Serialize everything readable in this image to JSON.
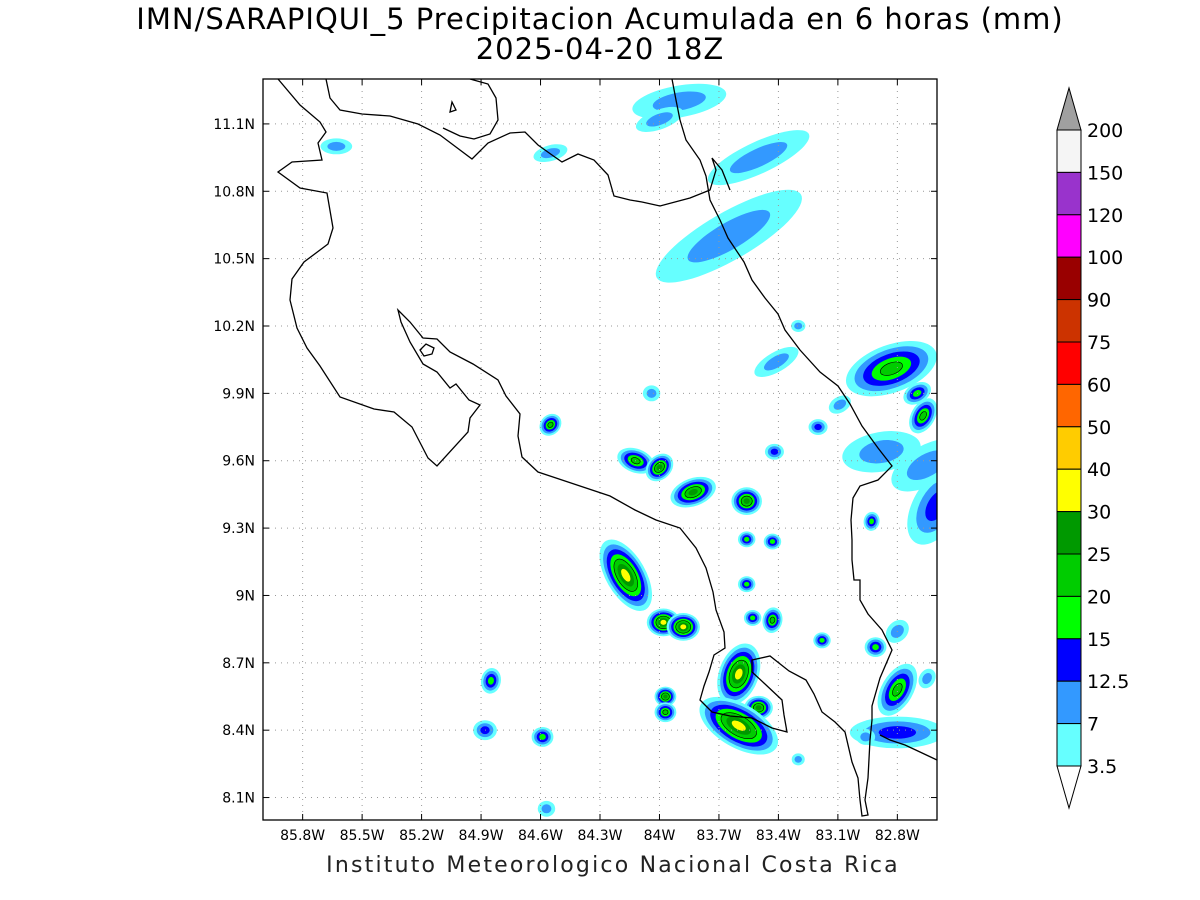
{
  "title": {
    "line1": "IMN/SARAPIQUI_5 Precipitacion Acumulada en 6 horas (mm)",
    "line2": "2025-04-20 18Z"
  },
  "footer": "Instituto Meteorologico Nacional Costa Rica",
  "map": {
    "lon_ticks": [
      "85.8W",
      "85.5W",
      "85.2W",
      "84.9W",
      "84.6W",
      "84.3W",
      "84W",
      "83.7W",
      "83.4W",
      "83.1W",
      "82.8W"
    ],
    "lat_ticks": [
      "11.1N",
      "10.8N",
      "10.5N",
      "10.2N",
      "9.9N",
      "9.6N",
      "9.3N",
      "9N",
      "8.7N",
      "8.4N",
      "8.1N"
    ],
    "lon_range": [
      -86.0,
      -82.6
    ],
    "lat_range": [
      8.0,
      11.3
    ],
    "grid": "dotted"
  },
  "colorbar": {
    "labels": [
      "200",
      "150",
      "120",
      "100",
      "90",
      "75",
      "60",
      "50",
      "40",
      "30",
      "25",
      "20",
      "15",
      "12.5",
      "7",
      "3.5"
    ],
    "colors": [
      "#a0a0a0",
      "#f5f5f5",
      "#9933cc",
      "#ff00ff",
      "#990000",
      "#cc3300",
      "#ff0000",
      "#ff6600",
      "#ffcc00",
      "#ffff00",
      "#009900",
      "#00cc00",
      "#00ff00",
      "#0000ff",
      "#3399ff",
      "#66ffff",
      "#ffffff"
    ]
  },
  "colors": {
    "c3_5": "#66ffff",
    "c7": "#3399ff",
    "c12_5": "#0000ff",
    "c15": "#00ff00",
    "c20": "#00cc00",
    "c25": "#009900",
    "c30": "#ffff00"
  },
  "rain_cells": [
    {
      "lon": -83.9,
      "lat": 11.2,
      "level": 1,
      "size": 0.08,
      "elong": 3.0,
      "angle": -10
    },
    {
      "lon": -84.0,
      "lat": 11.12,
      "level": 1,
      "size": 0.05,
      "elong": 2.5,
      "angle": -20
    },
    {
      "lon": -83.5,
      "lat": 10.95,
      "level": 1,
      "size": 0.08,
      "elong": 3.5,
      "angle": -25
    },
    {
      "lon": -83.65,
      "lat": 10.6,
      "level": 1,
      "size": 0.12,
      "elong": 3.5,
      "angle": -30
    },
    {
      "lon": -84.55,
      "lat": 10.97,
      "level": 1,
      "size": 0.04,
      "elong": 2.2,
      "angle": -15
    },
    {
      "lon": -85.63,
      "lat": 11.0,
      "level": 1,
      "size": 0.04,
      "elong": 2.0,
      "angle": 0
    },
    {
      "lon": -84.55,
      "lat": 9.76,
      "level": 4,
      "size": 0.05,
      "elong": 1.2,
      "angle": -45
    },
    {
      "lon": -84.12,
      "lat": 9.6,
      "level": 4,
      "size": 0.06,
      "elong": 1.6,
      "angle": 20
    },
    {
      "lon": -84.0,
      "lat": 9.57,
      "level": 5,
      "size": 0.06,
      "elong": 1.3,
      "angle": -45
    },
    {
      "lon": -83.83,
      "lat": 9.46,
      "level": 5,
      "size": 0.07,
      "elong": 1.7,
      "angle": -20
    },
    {
      "lon": -83.56,
      "lat": 9.42,
      "level": 5,
      "size": 0.07,
      "elong": 1.1,
      "angle": 0
    },
    {
      "lon": -84.17,
      "lat": 9.09,
      "level": 6,
      "size": 0.1,
      "elong": 2.0,
      "angle": 60
    },
    {
      "lon": -83.98,
      "lat": 8.88,
      "level": 6,
      "size": 0.07,
      "elong": 1.2,
      "angle": 0
    },
    {
      "lon": -83.88,
      "lat": 8.86,
      "level": 6,
      "size": 0.07,
      "elong": 1.2,
      "angle": 0
    },
    {
      "lon": -83.6,
      "lat": 8.65,
      "level": 6,
      "size": 0.1,
      "elong": 1.6,
      "angle": -70
    },
    {
      "lon": -83.5,
      "lat": 8.5,
      "level": 5,
      "size": 0.06,
      "elong": 1.2,
      "angle": 0
    },
    {
      "lon": -83.6,
      "lat": 8.42,
      "level": 6,
      "size": 0.11,
      "elong": 2.0,
      "angle": 30
    },
    {
      "lon": -83.97,
      "lat": 8.55,
      "level": 5,
      "size": 0.05,
      "elong": 1.1,
      "angle": 0
    },
    {
      "lon": -83.97,
      "lat": 8.48,
      "level": 4,
      "size": 0.05,
      "elong": 1.1,
      "angle": 0
    },
    {
      "lon": -83.43,
      "lat": 8.89,
      "level": 4,
      "size": 0.05,
      "elong": 1.3,
      "angle": -80
    },
    {
      "lon": -82.83,
      "lat": 10.01,
      "level": 4,
      "size": 0.12,
      "elong": 2.0,
      "angle": -20
    },
    {
      "lon": -82.67,
      "lat": 9.8,
      "level": 4,
      "size": 0.06,
      "elong": 1.6,
      "angle": -60
    },
    {
      "lon": -82.7,
      "lat": 9.9,
      "level": 3,
      "size": 0.05,
      "elong": 1.5,
      "angle": -30
    },
    {
      "lon": -82.8,
      "lat": 8.58,
      "level": 4,
      "size": 0.08,
      "elong": 1.8,
      "angle": -60
    },
    {
      "lon": -82.91,
      "lat": 8.77,
      "level": 3,
      "size": 0.05,
      "elong": 1.1,
      "angle": 0
    },
    {
      "lon": -83.18,
      "lat": 8.8,
      "level": 3,
      "size": 0.04,
      "elong": 1.1,
      "angle": 0
    },
    {
      "lon": -82.6,
      "lat": 9.4,
      "level": 2,
      "size": 0.12,
      "elong": 1.8,
      "angle": -60
    },
    {
      "lon": -82.65,
      "lat": 9.58,
      "level": 1,
      "size": 0.1,
      "elong": 2.0,
      "angle": -30
    },
    {
      "lon": -82.88,
      "lat": 9.64,
      "level": 1,
      "size": 0.1,
      "elong": 2.0,
      "angle": -10
    },
    {
      "lon": -84.85,
      "lat": 8.62,
      "level": 3,
      "size": 0.05,
      "elong": 1.3,
      "angle": -80
    },
    {
      "lon": -84.88,
      "lat": 8.4,
      "level": 2,
      "size": 0.05,
      "elong": 1.2,
      "angle": 0
    },
    {
      "lon": -84.59,
      "lat": 8.37,
      "level": 3,
      "size": 0.05,
      "elong": 1.1,
      "angle": 0
    },
    {
      "lon": -84.57,
      "lat": 8.05,
      "level": 1,
      "size": 0.04,
      "elong": 1.1,
      "angle": 0
    },
    {
      "lon": -83.56,
      "lat": 9.25,
      "level": 3,
      "size": 0.04,
      "elong": 1.1,
      "angle": 0
    },
    {
      "lon": -83.43,
      "lat": 9.24,
      "level": 3,
      "size": 0.04,
      "elong": 1.1,
      "angle": 0
    },
    {
      "lon": -83.56,
      "lat": 9.05,
      "level": 3,
      "size": 0.04,
      "elong": 1.1,
      "angle": 0
    },
    {
      "lon": -83.53,
      "lat": 8.9,
      "level": 3,
      "size": 0.04,
      "elong": 1.1,
      "angle": 0
    },
    {
      "lon": -82.93,
      "lat": 9.33,
      "level": 3,
      "size": 0.04,
      "elong": 1.2,
      "angle": -80
    },
    {
      "lon": -83.41,
      "lat": 10.04,
      "level": 1,
      "size": 0.05,
      "elong": 2.5,
      "angle": -30
    },
    {
      "lon": -83.3,
      "lat": 10.2,
      "level": 1,
      "size": 0.03,
      "elong": 1.2,
      "angle": 0
    },
    {
      "lon": -83.2,
      "lat": 9.75,
      "level": 2,
      "size": 0.04,
      "elong": 1.2,
      "angle": 0
    },
    {
      "lon": -83.09,
      "lat": 9.85,
      "level": 1,
      "size": 0.04,
      "elong": 1.5,
      "angle": -30
    },
    {
      "lon": -83.42,
      "lat": 9.64,
      "level": 2,
      "size": 0.04,
      "elong": 1.2,
      "angle": 0
    },
    {
      "lon": -84.04,
      "lat": 9.9,
      "level": 1,
      "size": 0.04,
      "elong": 1.1,
      "angle": 0
    },
    {
      "lon": -83.3,
      "lat": 8.27,
      "level": 1,
      "size": 0.03,
      "elong": 1.1,
      "angle": 0
    },
    {
      "lon": -82.65,
      "lat": 8.63,
      "level": 1,
      "size": 0.04,
      "elong": 1.3,
      "angle": -60
    },
    {
      "lon": -82.8,
      "lat": 8.39,
      "level": 2,
      "size": 0.08,
      "elong": 3.0,
      "angle": 0
    },
    {
      "lon": -82.8,
      "lat": 8.84,
      "level": 1,
      "size": 0.05,
      "elong": 1.3,
      "angle": -45
    },
    {
      "lon": -82.96,
      "lat": 8.37,
      "level": 1,
      "size": 0.04,
      "elong": 1.2,
      "angle": 0
    }
  ]
}
